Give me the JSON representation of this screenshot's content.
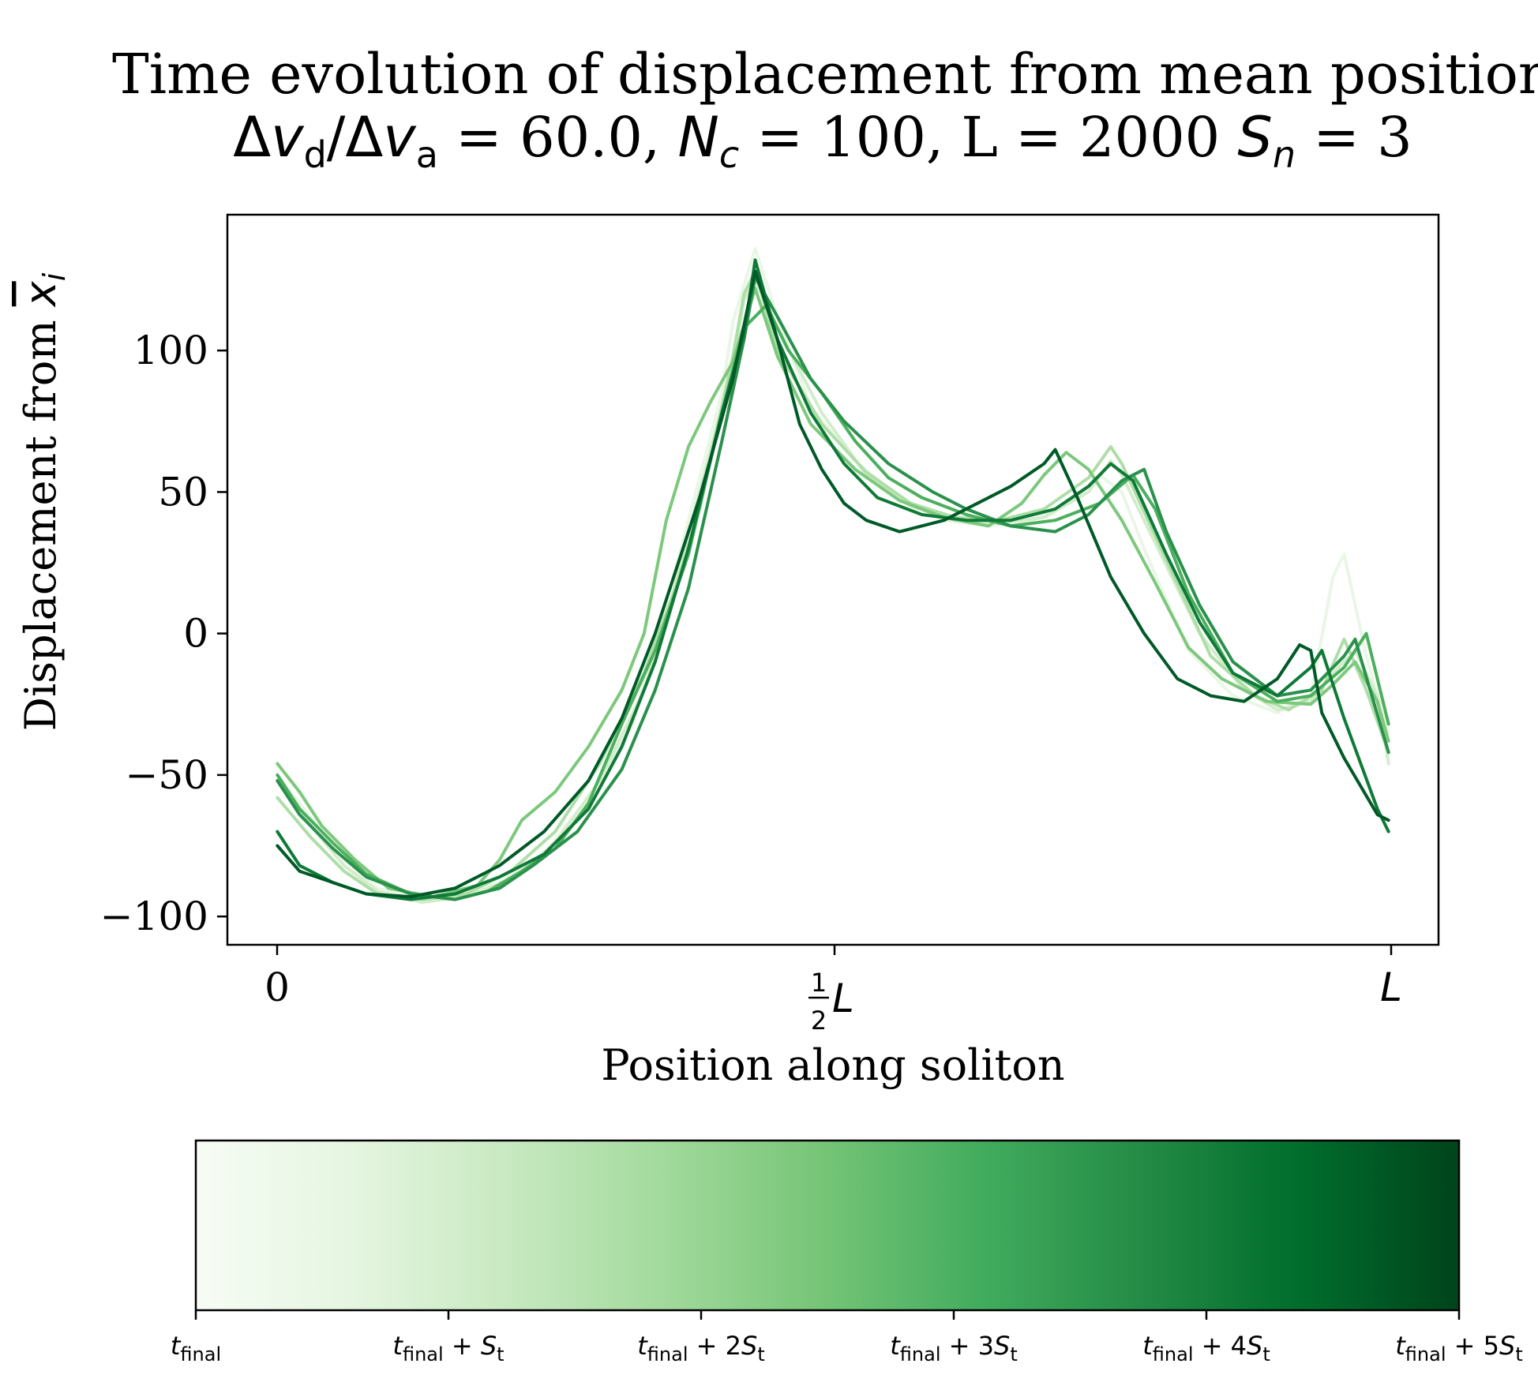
{
  "chart_data": {
    "type": "line",
    "title_line1": "Time evolution of displacement from mean position",
    "title_line2": {
      "delta": "Δ",
      "v": "v",
      "sub_d": "d",
      "slash": "/",
      "sub_a": "a",
      "eq_ratio": " = 60.0, ",
      "N": "N",
      "sub_c": "c",
      "eq_nc": " = 100, L = 2000 ",
      "S": "S",
      "sub_n": "n",
      "eq_sn": " = 3"
    },
    "xlabel": "Position along soliton",
    "ylabel": {
      "text": "Displacement from ",
      "x": "x",
      "sub_i": "i"
    },
    "xlim": [
      -0.045,
      1.045
    ],
    "ylim": [
      -110,
      148
    ],
    "yticks": [
      100,
      50,
      0,
      -50,
      -100
    ],
    "ytick_labels": [
      "100",
      "50",
      "0",
      "−50",
      "−100"
    ],
    "xticks": [
      {
        "value": 0,
        "label": "0"
      },
      {
        "value": 0.5,
        "num": "1",
        "den": "2",
        "var": "L"
      },
      {
        "value": 1,
        "label": "L"
      }
    ],
    "colormap": "Greens",
    "colormap_stops": [
      "#f7fcf5",
      "#e5f5e0",
      "#c7e9c0",
      "#a1d99b",
      "#74c476",
      "#41ab5d",
      "#238b45",
      "#006d2c",
      "#00441b"
    ],
    "series": [
      {
        "color": "#eaf6e6",
        "width": 4,
        "points": [
          [
            0,
            -50
          ],
          [
            0.03,
            -65
          ],
          [
            0.06,
            -80
          ],
          [
            0.09,
            -90
          ],
          [
            0.13,
            -94
          ],
          [
            0.16,
            -93
          ],
          [
            0.2,
            -88
          ],
          [
            0.24,
            -78
          ],
          [
            0.28,
            -58
          ],
          [
            0.32,
            -32
          ],
          [
            0.34,
            -2
          ],
          [
            0.36,
            25
          ],
          [
            0.4,
            85
          ],
          [
            0.41,
            110
          ],
          [
            0.43,
            136
          ],
          [
            0.45,
            112
          ],
          [
            0.48,
            80
          ],
          [
            0.52,
            61
          ],
          [
            0.56,
            48
          ],
          [
            0.6,
            40
          ],
          [
            0.64,
            38
          ],
          [
            0.68,
            40
          ],
          [
            0.72,
            48
          ],
          [
            0.74,
            56
          ],
          [
            0.76,
            50
          ],
          [
            0.78,
            30
          ],
          [
            0.82,
            -6
          ],
          [
            0.86,
            -22
          ],
          [
            0.9,
            -28
          ],
          [
            0.93,
            -22
          ],
          [
            0.95,
            20
          ],
          [
            0.96,
            28
          ],
          [
            0.98,
            -8
          ],
          [
            1,
            -35
          ]
        ]
      },
      {
        "color": "#d2edcb",
        "width": 4,
        "points": [
          [
            0,
            -52
          ],
          [
            0.03,
            -68
          ],
          [
            0.06,
            -82
          ],
          [
            0.09,
            -91
          ],
          [
            0.13,
            -95
          ],
          [
            0.17,
            -93
          ],
          [
            0.21,
            -87
          ],
          [
            0.25,
            -74
          ],
          [
            0.29,
            -52
          ],
          [
            0.33,
            -20
          ],
          [
            0.35,
            5
          ],
          [
            0.37,
            35
          ],
          [
            0.41,
            95
          ],
          [
            0.42,
            118
          ],
          [
            0.43,
            125
          ],
          [
            0.45,
            108
          ],
          [
            0.49,
            78
          ],
          [
            0.53,
            56
          ],
          [
            0.57,
            45
          ],
          [
            0.61,
            40
          ],
          [
            0.65,
            39
          ],
          [
            0.69,
            41
          ],
          [
            0.73,
            50
          ],
          [
            0.75,
            61
          ],
          [
            0.76,
            56
          ],
          [
            0.79,
            32
          ],
          [
            0.83,
            0
          ],
          [
            0.87,
            -20
          ],
          [
            0.9,
            -27
          ],
          [
            0.93,
            -24
          ],
          [
            0.95,
            -14
          ],
          [
            0.97,
            -6
          ],
          [
            0.99,
            -22
          ],
          [
            1,
            -46
          ]
        ]
      },
      {
        "color": "#aedea8",
        "width": 4,
        "points": [
          [
            0,
            -58
          ],
          [
            0.03,
            -72
          ],
          [
            0.06,
            -84
          ],
          [
            0.09,
            -92
          ],
          [
            0.13,
            -94
          ],
          [
            0.17,
            -92
          ],
          [
            0.21,
            -84
          ],
          [
            0.25,
            -70
          ],
          [
            0.29,
            -46
          ],
          [
            0.33,
            -14
          ],
          [
            0.36,
            18
          ],
          [
            0.38,
            44
          ],
          [
            0.41,
            98
          ],
          [
            0.42,
            120
          ],
          [
            0.43,
            128
          ],
          [
            0.45,
            100
          ],
          [
            0.49,
            74
          ],
          [
            0.53,
            57
          ],
          [
            0.57,
            46
          ],
          [
            0.61,
            41
          ],
          [
            0.65,
            40
          ],
          [
            0.69,
            44
          ],
          [
            0.73,
            55
          ],
          [
            0.75,
            66
          ],
          [
            0.76,
            60
          ],
          [
            0.8,
            26
          ],
          [
            0.84,
            -8
          ],
          [
            0.88,
            -22
          ],
          [
            0.91,
            -27
          ],
          [
            0.94,
            -20
          ],
          [
            0.96,
            -2
          ],
          [
            0.98,
            -20
          ],
          [
            1,
            -42
          ]
        ]
      },
      {
        "color": "#7cc87c",
        "width": 4,
        "points": [
          [
            0,
            -46
          ],
          [
            0.02,
            -56
          ],
          [
            0.04,
            -68
          ],
          [
            0.07,
            -80
          ],
          [
            0.1,
            -90
          ],
          [
            0.14,
            -93
          ],
          [
            0.18,
            -89
          ],
          [
            0.2,
            -80
          ],
          [
            0.22,
            -66
          ],
          [
            0.25,
            -56
          ],
          [
            0.28,
            -40
          ],
          [
            0.31,
            -20
          ],
          [
            0.33,
            0
          ],
          [
            0.35,
            40
          ],
          [
            0.37,
            66
          ],
          [
            0.39,
            82
          ],
          [
            0.41,
            96
          ],
          [
            0.43,
            122
          ],
          [
            0.45,
            98
          ],
          [
            0.48,
            74
          ],
          [
            0.52,
            58
          ],
          [
            0.56,
            47
          ],
          [
            0.6,
            41
          ],
          [
            0.64,
            38
          ],
          [
            0.67,
            46
          ],
          [
            0.69,
            56
          ],
          [
            0.71,
            64
          ],
          [
            0.73,
            58
          ],
          [
            0.76,
            40
          ],
          [
            0.79,
            18
          ],
          [
            0.82,
            -5
          ],
          [
            0.85,
            -16
          ],
          [
            0.89,
            -24
          ],
          [
            0.93,
            -25
          ],
          [
            0.95,
            -18
          ],
          [
            0.97,
            -10
          ],
          [
            0.99,
            -24
          ],
          [
            1,
            -38
          ]
        ]
      },
      {
        "color": "#4caf5e",
        "width": 4,
        "points": [
          [
            0,
            -50
          ],
          [
            0.02,
            -62
          ],
          [
            0.05,
            -74
          ],
          [
            0.08,
            -85
          ],
          [
            0.12,
            -92
          ],
          [
            0.16,
            -94
          ],
          [
            0.19,
            -91
          ],
          [
            0.22,
            -84
          ],
          [
            0.25,
            -76
          ],
          [
            0.28,
            -60
          ],
          [
            0.31,
            -32
          ],
          [
            0.34,
            -6
          ],
          [
            0.37,
            28
          ],
          [
            0.4,
            78
          ],
          [
            0.42,
            108
          ],
          [
            0.44,
            116
          ],
          [
            0.46,
            100
          ],
          [
            0.49,
            85
          ],
          [
            0.52,
            68
          ],
          [
            0.55,
            55
          ],
          [
            0.58,
            48
          ],
          [
            0.62,
            42
          ],
          [
            0.66,
            38
          ],
          [
            0.7,
            40
          ],
          [
            0.74,
            46
          ],
          [
            0.77,
            56
          ],
          [
            0.79,
            44
          ],
          [
            0.82,
            14
          ],
          [
            0.86,
            -14
          ],
          [
            0.9,
            -24
          ],
          [
            0.93,
            -22
          ],
          [
            0.96,
            -12
          ],
          [
            0.98,
            0
          ],
          [
            1,
            -32
          ]
        ]
      },
      {
        "color": "#2a914c",
        "width": 4,
        "points": [
          [
            0,
            -52
          ],
          [
            0.02,
            -64
          ],
          [
            0.05,
            -76
          ],
          [
            0.08,
            -86
          ],
          [
            0.12,
            -92
          ],
          [
            0.16,
            -94
          ],
          [
            0.2,
            -90
          ],
          [
            0.23,
            -82
          ],
          [
            0.27,
            -70
          ],
          [
            0.31,
            -48
          ],
          [
            0.34,
            -20
          ],
          [
            0.37,
            16
          ],
          [
            0.4,
            68
          ],
          [
            0.42,
            104
          ],
          [
            0.43,
            126
          ],
          [
            0.45,
            112
          ],
          [
            0.48,
            90
          ],
          [
            0.51,
            75
          ],
          [
            0.55,
            60
          ],
          [
            0.59,
            50
          ],
          [
            0.62,
            44
          ],
          [
            0.66,
            38
          ],
          [
            0.7,
            36
          ],
          [
            0.73,
            42
          ],
          [
            0.76,
            54
          ],
          [
            0.78,
            58
          ],
          [
            0.8,
            36
          ],
          [
            0.83,
            10
          ],
          [
            0.86,
            -10
          ],
          [
            0.9,
            -22
          ],
          [
            0.93,
            -20
          ],
          [
            0.96,
            -8
          ],
          [
            0.97,
            -2
          ],
          [
            1,
            -42
          ]
        ]
      },
      {
        "color": "#0f7a37",
        "width": 4,
        "points": [
          [
            0,
            -70
          ],
          [
            0.02,
            -82
          ],
          [
            0.05,
            -88
          ],
          [
            0.08,
            -92
          ],
          [
            0.12,
            -94
          ],
          [
            0.16,
            -92
          ],
          [
            0.2,
            -86
          ],
          [
            0.24,
            -78
          ],
          [
            0.28,
            -62
          ],
          [
            0.31,
            -40
          ],
          [
            0.34,
            -10
          ],
          [
            0.37,
            30
          ],
          [
            0.4,
            78
          ],
          [
            0.42,
            106
          ],
          [
            0.43,
            132
          ],
          [
            0.45,
            104
          ],
          [
            0.48,
            78
          ],
          [
            0.51,
            60
          ],
          [
            0.54,
            48
          ],
          [
            0.58,
            42
          ],
          [
            0.62,
            40
          ],
          [
            0.66,
            40
          ],
          [
            0.7,
            44
          ],
          [
            0.73,
            52
          ],
          [
            0.75,
            60
          ],
          [
            0.77,
            54
          ],
          [
            0.8,
            28
          ],
          [
            0.83,
            4
          ],
          [
            0.86,
            -14
          ],
          [
            0.9,
            -22
          ],
          [
            0.93,
            -12
          ],
          [
            0.94,
            -6
          ],
          [
            0.96,
            -30
          ],
          [
            0.99,
            -62
          ],
          [
            1,
            -70
          ]
        ]
      },
      {
        "color": "#005a27",
        "width": 4,
        "points": [
          [
            0,
            -75
          ],
          [
            0.02,
            -84
          ],
          [
            0.05,
            -88
          ],
          [
            0.08,
            -92
          ],
          [
            0.12,
            -93
          ],
          [
            0.16,
            -90
          ],
          [
            0.2,
            -82
          ],
          [
            0.24,
            -70
          ],
          [
            0.28,
            -52
          ],
          [
            0.31,
            -30
          ],
          [
            0.34,
            0
          ],
          [
            0.36,
            24
          ],
          [
            0.38,
            48
          ],
          [
            0.41,
            90
          ],
          [
            0.43,
            128
          ],
          [
            0.45,
            104
          ],
          [
            0.47,
            74
          ],
          [
            0.49,
            58
          ],
          [
            0.51,
            46
          ],
          [
            0.53,
            40
          ],
          [
            0.56,
            36
          ],
          [
            0.6,
            40
          ],
          [
            0.63,
            46
          ],
          [
            0.66,
            52
          ],
          [
            0.69,
            60
          ],
          [
            0.7,
            65
          ],
          [
            0.72,
            48
          ],
          [
            0.75,
            20
          ],
          [
            0.78,
            0
          ],
          [
            0.81,
            -16
          ],
          [
            0.84,
            -22
          ],
          [
            0.87,
            -24
          ],
          [
            0.9,
            -16
          ],
          [
            0.92,
            -4
          ],
          [
            0.93,
            -6
          ],
          [
            0.94,
            -28
          ],
          [
            0.96,
            -44
          ],
          [
            0.99,
            -64
          ],
          [
            1,
            -66
          ]
        ]
      }
    ],
    "colorbar": {
      "tick_labels": [
        {
          "t": "t",
          "sub": "final",
          "tail": "",
          "S": "",
          "subS": ""
        },
        {
          "t": "t",
          "sub": "final",
          "tail": " + ",
          "S": "S",
          "subS": "t"
        },
        {
          "t": "t",
          "sub": "final",
          "tail": " + 2",
          "S": "S",
          "subS": "t"
        },
        {
          "t": "t",
          "sub": "final",
          "tail": " + 3",
          "S": "S",
          "subS": "t"
        },
        {
          "t": "t",
          "sub": "final",
          "tail": " + 4",
          "S": "S",
          "subS": "t"
        },
        {
          "t": "t",
          "sub": "final",
          "tail": " + 5",
          "S": "S",
          "subS": "t"
        }
      ]
    },
    "grid": false,
    "legend": "none"
  }
}
